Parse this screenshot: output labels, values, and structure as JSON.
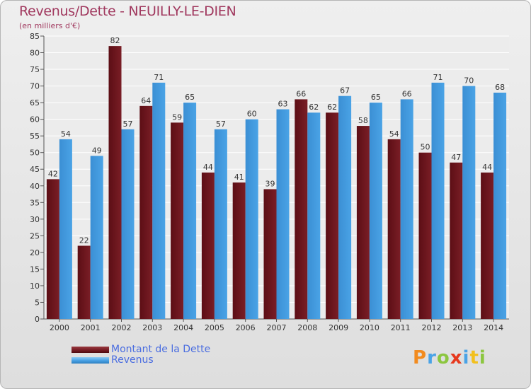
{
  "colors": {
    "debt": "#7a1e26",
    "revenue": "#4aa3e6",
    "title": "#a0385e",
    "legend_text": "#4a6de0"
  },
  "chart_data": {
    "type": "bar",
    "title": "Revenus/Dette - NEUILLY-LE-DIEN",
    "subtitle": "(en milliers d'€)",
    "xlabel": "",
    "ylabel": "",
    "ylim": [
      0,
      85
    ],
    "ytick_step": 5,
    "grid": true,
    "legend_position": "bottom-left",
    "categories": [
      "2000",
      "2001",
      "2002",
      "2003",
      "2004",
      "2005",
      "2006",
      "2007",
      "2008",
      "2009",
      "2010",
      "2011",
      "2012",
      "2013",
      "2014"
    ],
    "series": [
      {
        "name": "Montant de la Dette",
        "color": "#7a1e26",
        "values": [
          42,
          22,
          82,
          64,
          59,
          44,
          41,
          39,
          66,
          62,
          58,
          54,
          50,
          47,
          44
        ]
      },
      {
        "name": "Revenus",
        "color": "#4aa3e6",
        "values": [
          54,
          49,
          57,
          71,
          65,
          57,
          60,
          63,
          62,
          67,
          65,
          66,
          71,
          70,
          68
        ]
      }
    ]
  },
  "logo": {
    "letters": [
      "P",
      "r",
      "o",
      "x",
      "i",
      "t",
      "i"
    ],
    "colors": [
      "#f28b1e",
      "#4aa3e6",
      "#8cc63f",
      "#e6391e",
      "#4aa3e6",
      "#f2c01e",
      "#8cc63f"
    ]
  }
}
